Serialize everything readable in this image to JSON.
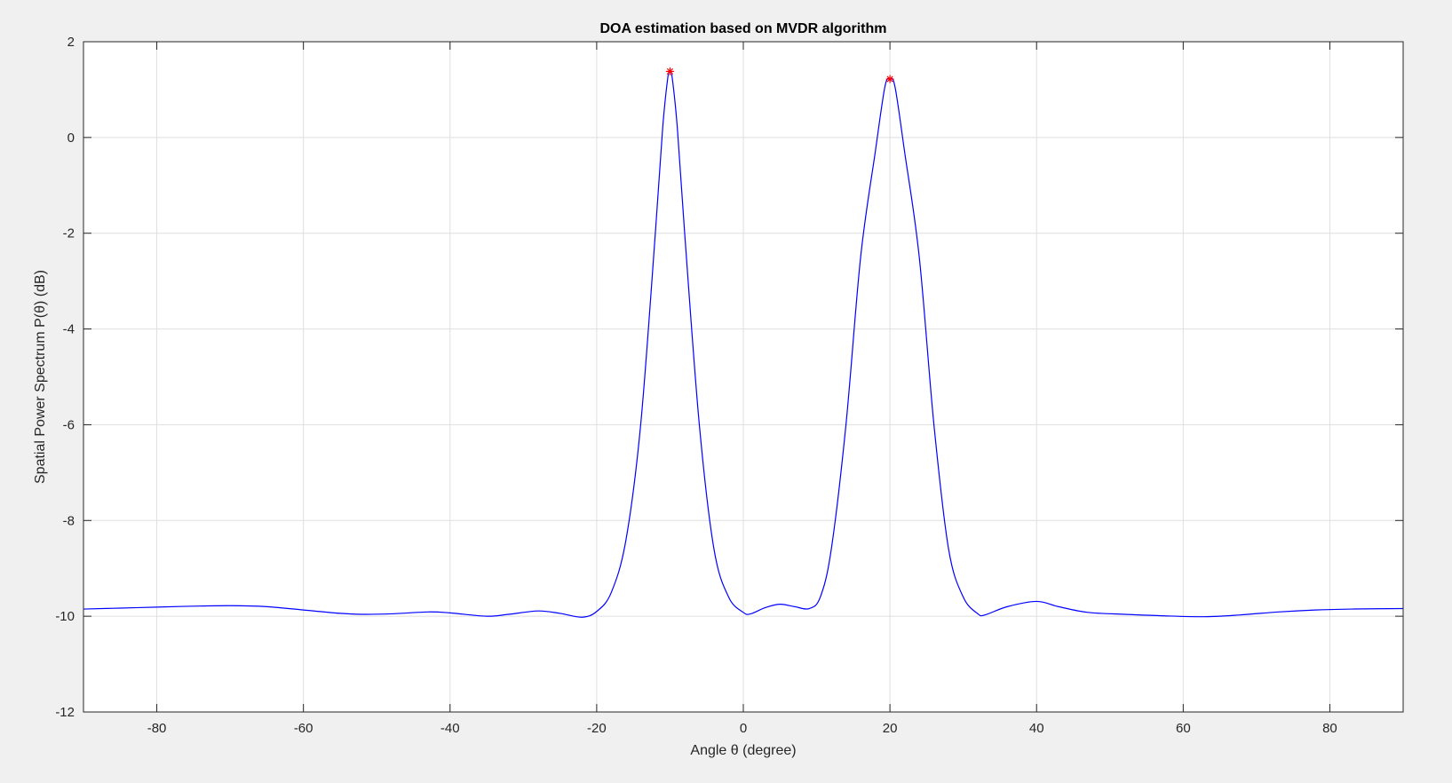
{
  "chart_data": {
    "type": "line",
    "title": "DOA estimation based on MVDR algorithm",
    "xlabel": "Angle θ (degree)",
    "ylabel": "Spatial Power Spectrum P(θ) (dB)",
    "xlim": [
      -90,
      90
    ],
    "ylim": [
      -12,
      2
    ],
    "xticks": [
      -80,
      -60,
      -40,
      -20,
      0,
      20,
      40,
      60,
      80
    ],
    "yticks": [
      2,
      0,
      -2,
      -4,
      -6,
      -8,
      -10,
      -12
    ],
    "grid": true,
    "series": [
      {
        "color": "#0000ff",
        "points": [
          [
            -90,
            -9.85
          ],
          [
            -85,
            -9.83
          ],
          [
            -80,
            -9.81
          ],
          [
            -75,
            -9.79
          ],
          [
            -70,
            -9.78
          ],
          [
            -65,
            -9.8
          ],
          [
            -60,
            -9.87
          ],
          [
            -55,
            -9.94
          ],
          [
            -52,
            -9.96
          ],
          [
            -48,
            -9.95
          ],
          [
            -43,
            -9.91
          ],
          [
            -40,
            -9.93
          ],
          [
            -35,
            -10.0
          ],
          [
            -32,
            -9.96
          ],
          [
            -28,
            -9.89
          ],
          [
            -25,
            -9.94
          ],
          [
            -22,
            -10.02
          ],
          [
            -20,
            -9.9
          ],
          [
            -18,
            -9.5
          ],
          [
            -16,
            -8.4
          ],
          [
            -14,
            -6.0
          ],
          [
            -12,
            -2.0
          ],
          [
            -11,
            0.2
          ],
          [
            -10.3,
            1.25
          ],
          [
            -10,
            1.38
          ],
          [
            -9.7,
            1.25
          ],
          [
            -9,
            0.2
          ],
          [
            -8,
            -2.0
          ],
          [
            -6,
            -6.0
          ],
          [
            -4,
            -8.6
          ],
          [
            -2,
            -9.6
          ],
          [
            0,
            -9.92
          ],
          [
            1,
            -9.95
          ],
          [
            3,
            -9.82
          ],
          [
            5,
            -9.75
          ],
          [
            7,
            -9.8
          ],
          [
            9,
            -9.84
          ],
          [
            10.5,
            -9.6
          ],
          [
            12,
            -8.6
          ],
          [
            14,
            -6.0
          ],
          [
            16,
            -2.5
          ],
          [
            18,
            -0.3
          ],
          [
            19.3,
            1.05
          ],
          [
            20,
            1.22
          ],
          [
            20.7,
            1.05
          ],
          [
            22,
            -0.3
          ],
          [
            24,
            -2.5
          ],
          [
            26,
            -6.0
          ],
          [
            28,
            -8.6
          ],
          [
            30,
            -9.6
          ],
          [
            32,
            -9.95
          ],
          [
            33,
            -9.97
          ],
          [
            36,
            -9.8
          ],
          [
            40,
            -9.69
          ],
          [
            43,
            -9.8
          ],
          [
            47,
            -9.92
          ],
          [
            52,
            -9.96
          ],
          [
            57,
            -9.99
          ],
          [
            63,
            -10.01
          ],
          [
            68,
            -9.97
          ],
          [
            73,
            -9.91
          ],
          [
            78,
            -9.87
          ],
          [
            83,
            -9.85
          ],
          [
            90,
            -9.84
          ]
        ]
      }
    ],
    "peaks": {
      "color": "#ff0000",
      "marker": "asterisk",
      "points": [
        [
          -10,
          1.38
        ],
        [
          20,
          1.22
        ]
      ]
    }
  }
}
